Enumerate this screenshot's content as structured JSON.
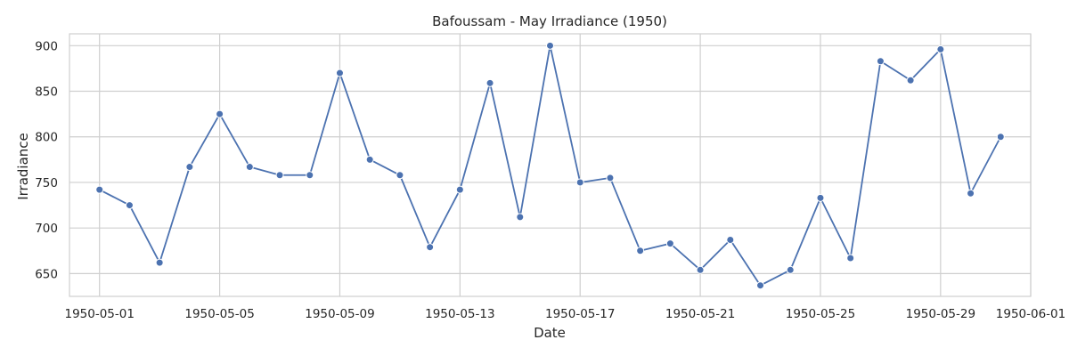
{
  "chart_data": {
    "type": "line",
    "title": "Bafoussam - May Irradiance (1950)",
    "xlabel": "Date",
    "ylabel": "Irradiance",
    "grid": true,
    "line_color": "#4c72b0",
    "xlim": [
      "1950-04-30",
      "1950-06-01"
    ],
    "ylim": [
      625,
      913
    ],
    "x_ticks": [
      "1950-05-01",
      "1950-05-05",
      "1950-05-09",
      "1950-05-13",
      "1950-05-17",
      "1950-05-21",
      "1950-05-25",
      "1950-05-29",
      "1950-06-01"
    ],
    "y_ticks": [
      650,
      700,
      750,
      800,
      850,
      900
    ],
    "x": [
      "1950-05-01",
      "1950-05-02",
      "1950-05-03",
      "1950-05-04",
      "1950-05-05",
      "1950-05-06",
      "1950-05-07",
      "1950-05-08",
      "1950-05-09",
      "1950-05-10",
      "1950-05-11",
      "1950-05-12",
      "1950-05-13",
      "1950-05-14",
      "1950-05-15",
      "1950-05-16",
      "1950-05-17",
      "1950-05-18",
      "1950-05-19",
      "1950-05-20",
      "1950-05-21",
      "1950-05-22",
      "1950-05-23",
      "1950-05-24",
      "1950-05-25",
      "1950-05-26",
      "1950-05-27",
      "1950-05-28",
      "1950-05-29",
      "1950-05-30",
      "1950-05-31"
    ],
    "series": [
      {
        "values": [
          742,
          725,
          662,
          767,
          825,
          767,
          758,
          758,
          870,
          775,
          758,
          679,
          742,
          859,
          712,
          900,
          750,
          755,
          675,
          683,
          654,
          687,
          637,
          654,
          733,
          667,
          883,
          862,
          896,
          738,
          800
        ]
      }
    ]
  }
}
